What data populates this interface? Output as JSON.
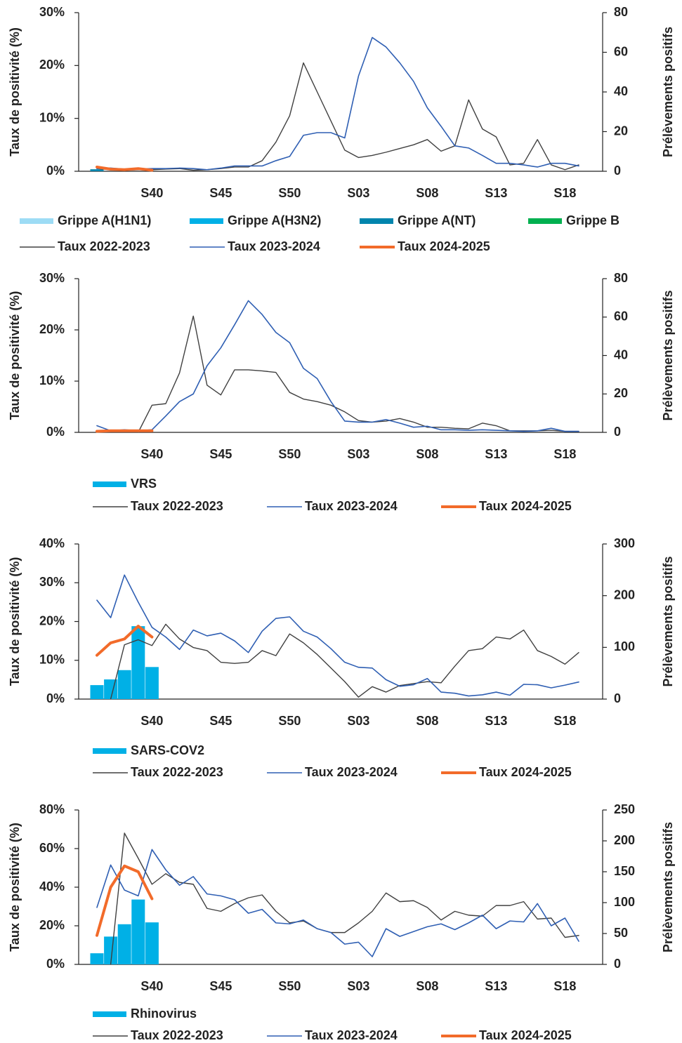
{
  "chart_data": [
    {
      "type": "combo",
      "y_label": "Taux de positivité (%)",
      "y2_label": "Prélèvements positifs",
      "categories": [
        null,
        null,
        null,
        null,
        "S40",
        null,
        null,
        null,
        null,
        "S45",
        null,
        null,
        null,
        null,
        "S50",
        null,
        null,
        null,
        null,
        "S03",
        null,
        null,
        null,
        null,
        "S08",
        null,
        null,
        null,
        null,
        "S13",
        null,
        null,
        null,
        null,
        "S18",
        null
      ],
      "ylim": [
        0,
        30
      ],
      "yticks": [
        {
          "value": 0,
          "label": "0%"
        },
        {
          "value": 10,
          "label": "10%"
        },
        {
          "value": 20,
          "label": "20%"
        },
        {
          "value": 30,
          "label": "30%"
        }
      ],
      "y2lim": [
        0,
        80
      ],
      "y2ticks": [
        0,
        20,
        40,
        60,
        80
      ],
      "series": [
        {
          "name": "Grippe A(H1N1)",
          "type": "bar",
          "axis": "y2",
          "color": "#9ddcf5",
          "values": [
            0,
            0,
            0,
            0,
            0,
            null,
            null,
            null,
            null,
            null,
            null,
            null,
            null,
            null,
            null,
            null,
            null,
            null,
            null,
            null,
            null,
            null,
            null,
            null,
            null,
            null,
            null,
            null,
            null,
            null,
            null,
            null,
            null,
            null,
            null,
            null
          ]
        },
        {
          "name": "Grippe A(H3N2)",
          "type": "bar",
          "axis": "y2",
          "color": "#00b0e6",
          "values": [
            0,
            0,
            0,
            0,
            0,
            null,
            null,
            null,
            null,
            null,
            null,
            null,
            null,
            null,
            null,
            null,
            null,
            null,
            null,
            null,
            null,
            null,
            null,
            null,
            null,
            null,
            null,
            null,
            null,
            null,
            null,
            null,
            null,
            null,
            null,
            null
          ]
        },
        {
          "name": "Grippe A(NT)",
          "type": "bar",
          "axis": "y2",
          "color": "#0085ad",
          "values": [
            1,
            0,
            0,
            0,
            0,
            null,
            null,
            null,
            null,
            null,
            null,
            null,
            null,
            null,
            null,
            null,
            null,
            null,
            null,
            null,
            null,
            null,
            null,
            null,
            null,
            null,
            null,
            null,
            null,
            null,
            null,
            null,
            null,
            null,
            null,
            null
          ]
        },
        {
          "name": "Grippe B",
          "type": "bar",
          "axis": "y2",
          "color": "#00b050",
          "values": [
            0,
            0,
            0,
            0,
            0,
            null,
            null,
            null,
            null,
            null,
            null,
            null,
            null,
            null,
            null,
            null,
            null,
            null,
            null,
            null,
            null,
            null,
            null,
            null,
            null,
            null,
            null,
            null,
            null,
            null,
            null,
            null,
            null,
            null,
            null,
            null
          ]
        },
        {
          "name": "Taux 2022-2023",
          "type": "line",
          "color": "#404040",
          "width": 1.4,
          "values": [
            0.5,
            0.3,
            0.2,
            0.3,
            0.3,
            0.4,
            0.5,
            0.2,
            0.3,
            0.5,
            0.8,
            0.8,
            2,
            5.5,
            10.5,
            20.5,
            15,
            9.5,
            4,
            2.6,
            3,
            3.6,
            4.3,
            5,
            6,
            3.8,
            4.8,
            13.5,
            8,
            6.5,
            1.2,
            1.5,
            6,
            1.2,
            0.3,
            1.2
          ]
        },
        {
          "name": "Taux 2023-2024",
          "type": "line",
          "color": "#2f5fb3",
          "width": 1.6,
          "values": [
            0.5,
            0.6,
            0.4,
            0.4,
            0.5,
            0.5,
            0.6,
            0.5,
            0.3,
            0.6,
            1,
            1,
            1,
            2,
            2.8,
            6.8,
            7.3,
            7.3,
            6.3,
            18,
            25.3,
            23.5,
            20.5,
            17,
            12,
            8.5,
            4.8,
            4.4,
            3,
            1.5,
            1.5,
            1.2,
            0.8,
            1.5,
            1.5,
            1
          ]
        },
        {
          "name": "Taux 2024-2025",
          "type": "line",
          "color": "#f26b2a",
          "width": 4,
          "values": [
            0.8,
            0.4,
            0.3,
            0.5,
            0.2,
            null,
            null,
            null,
            null,
            null,
            null,
            null,
            null,
            null,
            null,
            null,
            null,
            null,
            null,
            null,
            null,
            null,
            null,
            null,
            null,
            null,
            null,
            null,
            null,
            null,
            null,
            null,
            null,
            null,
            null,
            null
          ]
        }
      ]
    },
    {
      "type": "combo",
      "y_label": "Taux de positivité (%)",
      "y2_label": "Prélèvements positifs",
      "categories": [
        null,
        null,
        null,
        null,
        "S40",
        null,
        null,
        null,
        null,
        "S45",
        null,
        null,
        null,
        null,
        "S50",
        null,
        null,
        null,
        null,
        "S03",
        null,
        null,
        null,
        null,
        "S08",
        null,
        null,
        null,
        null,
        "S13",
        null,
        null,
        null,
        null,
        "S18",
        null
      ],
      "ylim": [
        0,
        30
      ],
      "yticks": [
        {
          "value": 0,
          "label": "0%"
        },
        {
          "value": 10,
          "label": "10%"
        },
        {
          "value": 20,
          "label": "20%"
        },
        {
          "value": 30,
          "label": "30%"
        }
      ],
      "y2lim": [
        0,
        80
      ],
      "y2ticks": [
        0,
        20,
        40,
        60,
        80
      ],
      "series": [
        {
          "name": "VRS",
          "type": "bar",
          "axis": "y2",
          "color": "#00b0e6",
          "values": [
            0,
            0,
            0,
            0,
            0,
            null,
            null,
            null,
            null,
            null,
            null,
            null,
            null,
            null,
            null,
            null,
            null,
            null,
            null,
            null,
            null,
            null,
            null,
            null,
            null,
            null,
            null,
            null,
            null,
            null,
            null,
            null,
            null,
            null,
            null,
            null
          ]
        },
        {
          "name": "Taux 2022-2023",
          "type": "line",
          "color": "#404040",
          "width": 1.4,
          "values": [
            null,
            null,
            null,
            0,
            5.3,
            5.6,
            11.6,
            22.7,
            9.2,
            7.3,
            12.2,
            12.2,
            12,
            11.7,
            7.8,
            6.5,
            6,
            5.3,
            4,
            2.3,
            2,
            2.2,
            2.7,
            2,
            1,
            1,
            0.8,
            0.7,
            1.8,
            1.3,
            0.3,
            0.3,
            0.3,
            0.4,
            0.2,
            0.2
          ]
        },
        {
          "name": "Taux 2023-2024",
          "type": "line",
          "color": "#2f5fb3",
          "width": 1.6,
          "values": [
            1.3,
            0.3,
            0.5,
            0.3,
            0.5,
            3.2,
            6,
            7.5,
            13,
            16.5,
            21,
            25.7,
            23,
            19.5,
            17.5,
            12.5,
            10.5,
            6,
            2.2,
            2,
            2,
            2.5,
            1.8,
            1,
            1.2,
            0.5,
            0.5,
            0.4,
            0.5,
            0.4,
            0.3,
            0.2,
            0.3,
            0.8,
            0.2,
            0.2
          ]
        },
        {
          "name": "Taux 2024-2025",
          "type": "line",
          "color": "#f26b2a",
          "width": 4,
          "values": [
            0.2,
            0.3,
            0.3,
            0.3,
            0.3,
            null,
            null,
            null,
            null,
            null,
            null,
            null,
            null,
            null,
            null,
            null,
            null,
            null,
            null,
            null,
            null,
            null,
            null,
            null,
            null,
            null,
            null,
            null,
            null,
            null,
            null,
            null,
            null,
            null,
            null,
            null
          ]
        }
      ]
    },
    {
      "type": "combo",
      "y_label": "Taux de positivité (%)",
      "y2_label": "Prélèvements positifs",
      "categories": [
        null,
        null,
        null,
        null,
        "S40",
        null,
        null,
        null,
        null,
        "S45",
        null,
        null,
        null,
        null,
        "S50",
        null,
        null,
        null,
        null,
        "S03",
        null,
        null,
        null,
        null,
        "S08",
        null,
        null,
        null,
        null,
        "S13",
        null,
        null,
        null,
        null,
        "S18",
        null
      ],
      "ylim": [
        0,
        40
      ],
      "yticks": [
        {
          "value": 0,
          "label": "0%"
        },
        {
          "value": 10,
          "label": "10%"
        },
        {
          "value": 20,
          "label": "20%"
        },
        {
          "value": 30,
          "label": "30%"
        },
        {
          "value": 40,
          "label": "40%"
        }
      ],
      "y2lim": [
        0,
        300
      ],
      "y2ticks": [
        0,
        100,
        200,
        300
      ],
      "series": [
        {
          "name": "SARS-COV2",
          "type": "bar",
          "axis": "y2",
          "color": "#00b0e6",
          "values": [
            27,
            38,
            56,
            141,
            62,
            null,
            null,
            null,
            null,
            null,
            null,
            null,
            null,
            null,
            null,
            null,
            null,
            null,
            null,
            null,
            null,
            null,
            null,
            null,
            null,
            null,
            null,
            null,
            null,
            null,
            null,
            null,
            null,
            null,
            null,
            null
          ]
        },
        {
          "name": "Taux 2022-2023",
          "type": "line",
          "color": "#404040",
          "width": 1.4,
          "values": [
            null,
            0,
            14,
            15.3,
            13.8,
            19.3,
            15.5,
            13.3,
            12.5,
            9.5,
            9.2,
            9.5,
            12.5,
            11.2,
            16.8,
            14.5,
            11.5,
            8,
            4.5,
            0.5,
            3.2,
            1.8,
            3.5,
            4,
            4.5,
            4.2,
            8.5,
            12.5,
            13,
            16,
            15.5,
            17.8,
            12.5,
            11,
            9,
            12
          ]
        },
        {
          "name": "Taux 2023-2024",
          "type": "line",
          "color": "#2f5fb3",
          "width": 1.6,
          "values": [
            25.5,
            21,
            32,
            25,
            18.5,
            16,
            12.8,
            17.8,
            16.3,
            17,
            15,
            12,
            17.5,
            20.8,
            21.2,
            17.5,
            16,
            13,
            9.5,
            8.2,
            8,
            5,
            3.3,
            3.7,
            5.3,
            1.8,
            1.5,
            0.8,
            1.1,
            1.8,
            1,
            3.8,
            3.7,
            2.9,
            3.6,
            4.4
          ]
        },
        {
          "name": "Taux 2024-2025",
          "type": "line",
          "color": "#f26b2a",
          "width": 4,
          "values": [
            11.3,
            14.5,
            15.5,
            18.8,
            16,
            null,
            null,
            null,
            null,
            null,
            null,
            null,
            null,
            null,
            null,
            null,
            null,
            null,
            null,
            null,
            null,
            null,
            null,
            null,
            null,
            null,
            null,
            null,
            null,
            null,
            null,
            null,
            null,
            null,
            null,
            null
          ]
        }
      ]
    },
    {
      "type": "combo",
      "y_label": "Taux de positivité (%)",
      "y2_label": "Prélèvements positifs",
      "categories": [
        null,
        null,
        null,
        null,
        "S40",
        null,
        null,
        null,
        null,
        "S45",
        null,
        null,
        null,
        null,
        "S50",
        null,
        null,
        null,
        null,
        "S03",
        null,
        null,
        null,
        null,
        "S08",
        null,
        null,
        null,
        null,
        "S13",
        null,
        null,
        null,
        null,
        "S18",
        null
      ],
      "ylim": [
        0,
        80
      ],
      "yticks": [
        {
          "value": 0,
          "label": "0%"
        },
        {
          "value": 20,
          "label": "20%"
        },
        {
          "value": 40,
          "label": "40%"
        },
        {
          "value": 60,
          "label": "60%"
        },
        {
          "value": 80,
          "label": "80%"
        }
      ],
      "y2lim": [
        0,
        250
      ],
      "y2ticks": [
        0,
        50,
        100,
        150,
        200,
        250
      ],
      "series": [
        {
          "name": "Rhinovirus",
          "type": "bar",
          "axis": "y2",
          "color": "#00b0e6",
          "values": [
            18,
            45,
            65,
            105,
            68,
            null,
            null,
            null,
            null,
            null,
            null,
            null,
            null,
            null,
            null,
            null,
            null,
            null,
            null,
            null,
            null,
            null,
            null,
            null,
            null,
            null,
            null,
            null,
            null,
            null,
            null,
            null,
            null,
            null,
            null,
            null
          ]
        },
        {
          "name": "Taux 2022-2023",
          "type": "line",
          "color": "#404040",
          "width": 1.4,
          "values": [
            null,
            0,
            68,
            55,
            41.5,
            47,
            42.5,
            41.5,
            29,
            27.5,
            31.5,
            34.5,
            36,
            27.5,
            21.5,
            22.5,
            18.5,
            16.5,
            16.5,
            21.5,
            27.5,
            37,
            32.5,
            33,
            29.5,
            23,
            27.5,
            25.5,
            25,
            30.5,
            30.5,
            32.5,
            23.5,
            24,
            14,
            15
          ]
        },
        {
          "name": "Taux 2023-2024",
          "type": "line",
          "color": "#2f5fb3",
          "width": 1.6,
          "values": [
            29.5,
            51.5,
            38.5,
            35.5,
            59.5,
            49,
            41,
            45.5,
            36.5,
            35.5,
            33.5,
            26.5,
            28.5,
            21.5,
            21,
            23,
            18.5,
            16.5,
            10.5,
            11.5,
            4,
            18.5,
            14.5,
            17,
            19.5,
            21,
            18,
            21.5,
            25.5,
            18.5,
            22.5,
            22,
            31.5,
            20,
            24,
            12
          ]
        },
        {
          "name": "Taux 2024-2025",
          "type": "line",
          "color": "#f26b2a",
          "width": 4,
          "values": [
            15,
            40,
            51,
            48,
            34,
            null,
            null,
            null,
            null,
            null,
            null,
            null,
            null,
            null,
            null,
            null,
            null,
            null,
            null,
            null,
            null,
            null,
            null,
            null,
            null,
            null,
            null,
            null,
            null,
            null,
            null,
            null,
            null,
            null,
            null,
            null
          ]
        }
      ]
    }
  ]
}
